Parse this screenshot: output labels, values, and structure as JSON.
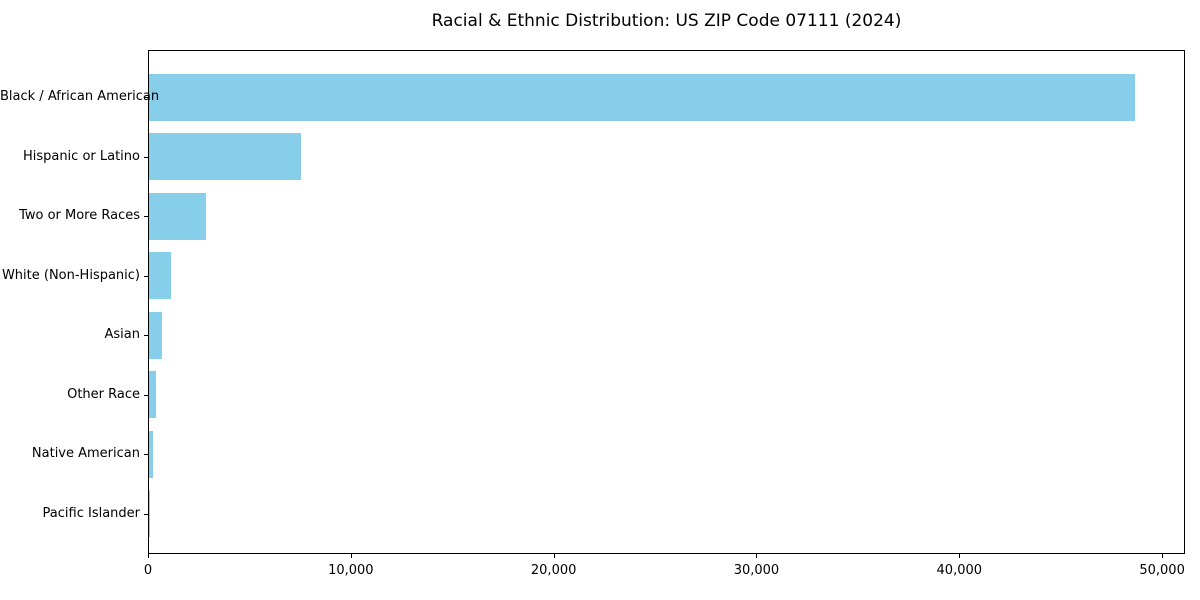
{
  "chart_data": {
    "type": "bar",
    "orientation": "horizontal",
    "title": "Racial & Ethnic Distribution: US ZIP Code 07111 (2024)",
    "categories": [
      "Black / African American",
      "Hispanic or Latino",
      "Two or More Races",
      "White (Non-Hispanic)",
      "Asian",
      "Other Race",
      "Native American",
      "Pacific Islander"
    ],
    "values": [
      48600,
      7500,
      2800,
      1100,
      650,
      350,
      200,
      25
    ],
    "xlabel": "",
    "ylabel": "",
    "xlim": [
      0,
      51030
    ],
    "xticks": [
      0,
      10000,
      20000,
      30000,
      40000,
      50000
    ],
    "xtick_labels": [
      "0",
      "10,000",
      "20,000",
      "30,000",
      "40,000",
      "50,000"
    ],
    "bar_color": "#87CEEB",
    "axis_color": "#000000",
    "text_color": "#000000",
    "background_color": "#ffffff",
    "grid": false,
    "legend": null
  }
}
